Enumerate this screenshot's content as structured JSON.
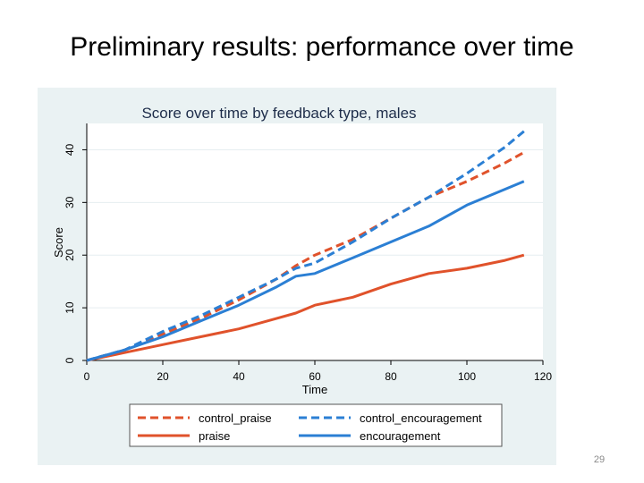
{
  "slide": {
    "title": "Preliminary results: performance over time",
    "page_number": "29"
  },
  "colors": {
    "panel_bg": "#eaf2f3",
    "plot_bg": "#ffffff",
    "orange": "#e0522b",
    "blue": "#2b7fd4",
    "grid": "#e6eef0"
  },
  "chart_data": {
    "type": "line",
    "title": "Score over time by feedback type, males",
    "xlabel": "Time",
    "ylabel": "Score",
    "xlim": [
      0,
      120
    ],
    "ylim": [
      0,
      45
    ],
    "xticks": [
      0,
      20,
      40,
      60,
      80,
      100,
      120
    ],
    "yticks": [
      0,
      10,
      20,
      30,
      40
    ],
    "grid": "horizontal",
    "legend_position": "bottom",
    "series": [
      {
        "name": "control_praise",
        "color": "#e0522b",
        "dash": "dashed",
        "x": [
          0,
          10,
          20,
          30,
          40,
          50,
          55,
          60,
          65,
          70,
          80,
          90,
          100,
          110,
          115
        ],
        "y": [
          0,
          2,
          5,
          8,
          11.5,
          15.5,
          18,
          20,
          21.5,
          23,
          27,
          31,
          34,
          37.5,
          39.5
        ]
      },
      {
        "name": "control_encouragement",
        "color": "#2b7fd4",
        "dash": "dashed",
        "x": [
          0,
          10,
          20,
          30,
          40,
          50,
          55,
          60,
          65,
          70,
          80,
          90,
          100,
          110,
          115
        ],
        "y": [
          0,
          2,
          5.5,
          8.5,
          12,
          15.5,
          17.5,
          18.5,
          20.5,
          22.5,
          27,
          31,
          35.5,
          40.5,
          43.5
        ]
      },
      {
        "name": "praise",
        "color": "#e0522b",
        "dash": "solid",
        "x": [
          0,
          10,
          20,
          30,
          40,
          50,
          55,
          60,
          70,
          80,
          90,
          100,
          110,
          115
        ],
        "y": [
          0,
          1.5,
          3,
          4.5,
          6,
          8,
          9,
          10.5,
          12,
          14.5,
          16.5,
          17.5,
          19,
          20
        ]
      },
      {
        "name": "encouragement",
        "color": "#2b7fd4",
        "dash": "solid",
        "x": [
          0,
          10,
          20,
          30,
          40,
          50,
          55,
          60,
          70,
          80,
          90,
          100,
          110,
          115
        ],
        "y": [
          0,
          2,
          4.5,
          7.5,
          10.5,
          14,
          16,
          16.5,
          19.5,
          22.5,
          25.5,
          29.5,
          32.5,
          34
        ]
      }
    ]
  }
}
